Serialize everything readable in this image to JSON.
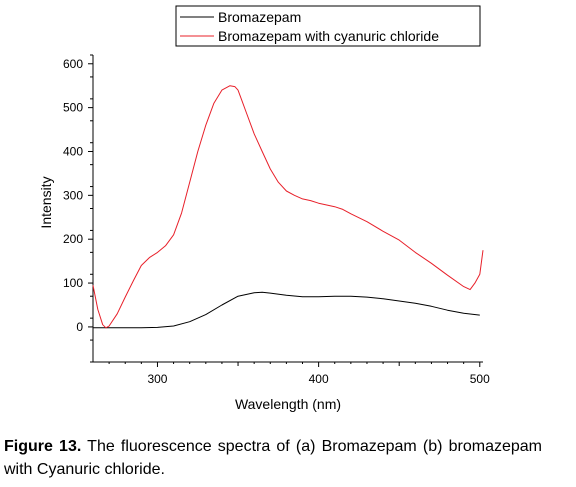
{
  "chart_data": {
    "type": "line",
    "xlabel": "Wavelength (nm)",
    "ylabel": "Intensity",
    "xlim": [
      260,
      502
    ],
    "ylim": [
      -80,
      620
    ],
    "x_ticks": [
      300,
      400,
      500
    ],
    "y_ticks": [
      0,
      100,
      200,
      300,
      400,
      500,
      600
    ],
    "legend_position": "top-right",
    "series": [
      {
        "name": "Bromazepam",
        "color": "#000000",
        "x": [
          260,
          270,
          280,
          290,
          300,
          310,
          320,
          330,
          340,
          350,
          360,
          365,
          370,
          380,
          390,
          400,
          410,
          420,
          430,
          440,
          450,
          460,
          470,
          480,
          490,
          500
        ],
        "y": [
          -2,
          -2,
          -2,
          -2,
          -1,
          2,
          12,
          28,
          50,
          70,
          78,
          79,
          77,
          72,
          69,
          69,
          70,
          70,
          68,
          64,
          59,
          54,
          47,
          38,
          31,
          27
        ]
      },
      {
        "name": "Bromazepam with cyanuric chloride",
        "color": "#e8202a",
        "x": [
          260,
          263,
          266,
          268,
          270,
          275,
          280,
          285,
          290,
          295,
          300,
          305,
          310,
          315,
          320,
          325,
          330,
          335,
          340,
          345,
          348,
          350,
          352,
          355,
          360,
          365,
          370,
          375,
          380,
          385,
          390,
          395,
          400,
          405,
          410,
          415,
          420,
          430,
          440,
          450,
          460,
          470,
          480,
          490,
          494,
          497,
          500,
          502
        ],
        "y": [
          95,
          40,
          5,
          -2,
          2,
          30,
          68,
          105,
          140,
          158,
          170,
          185,
          210,
          260,
          330,
          400,
          460,
          510,
          540,
          550,
          548,
          540,
          520,
          490,
          440,
          400,
          360,
          330,
          310,
          300,
          292,
          288,
          282,
          278,
          274,
          268,
          258,
          240,
          218,
          198,
          170,
          145,
          118,
          92,
          85,
          100,
          120,
          175
        ]
      }
    ]
  },
  "caption": {
    "label": "Figure 13.",
    "text": " The fluorescence spectra of (a) Bromazepam (b) bromazepam with Cyanuric chloride."
  }
}
